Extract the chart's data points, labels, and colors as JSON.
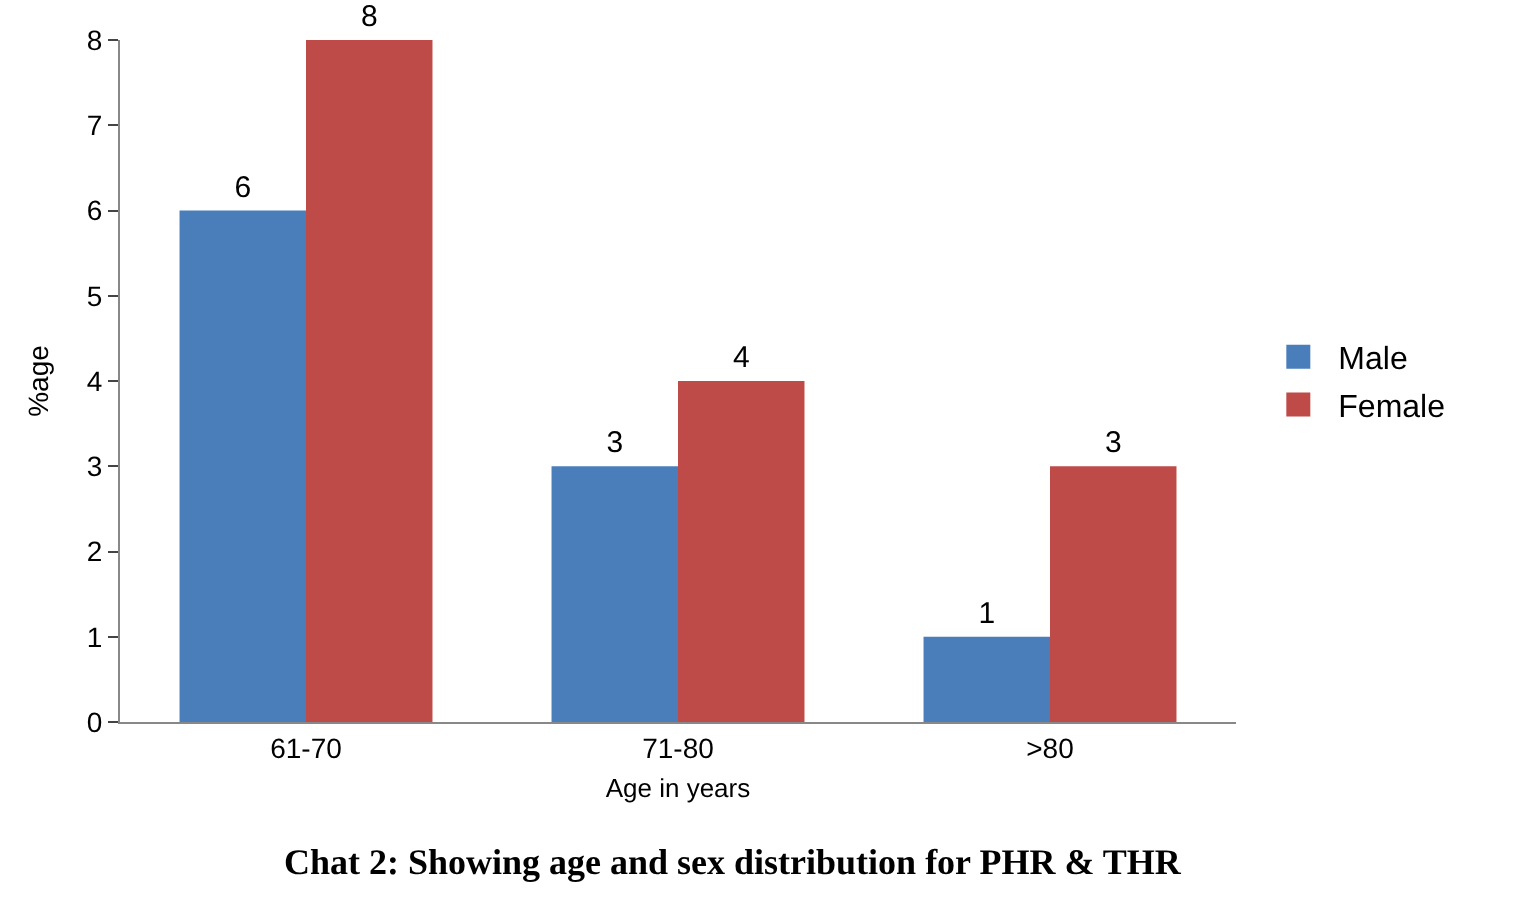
{
  "chart_data": {
    "type": "bar",
    "categories": [
      "61-70",
      "71-80",
      ">80"
    ],
    "series": [
      {
        "name": "Male",
        "color": "#4a7ebb",
        "values": [
          6,
          3,
          1
        ]
      },
      {
        "name": "Female",
        "color": "#be4b48",
        "values": [
          8,
          4,
          3
        ]
      }
    ],
    "xlabel": "Age in years",
    "ylabel": "%age",
    "ylim": [
      0,
      8
    ],
    "yticks": [
      0,
      1,
      2,
      3,
      4,
      5,
      6,
      7,
      8
    ],
    "data_labels": true,
    "legend": "right",
    "annotations": [
      "Chat 2: Showing age and sex distribution for PHR & THR"
    ]
  }
}
